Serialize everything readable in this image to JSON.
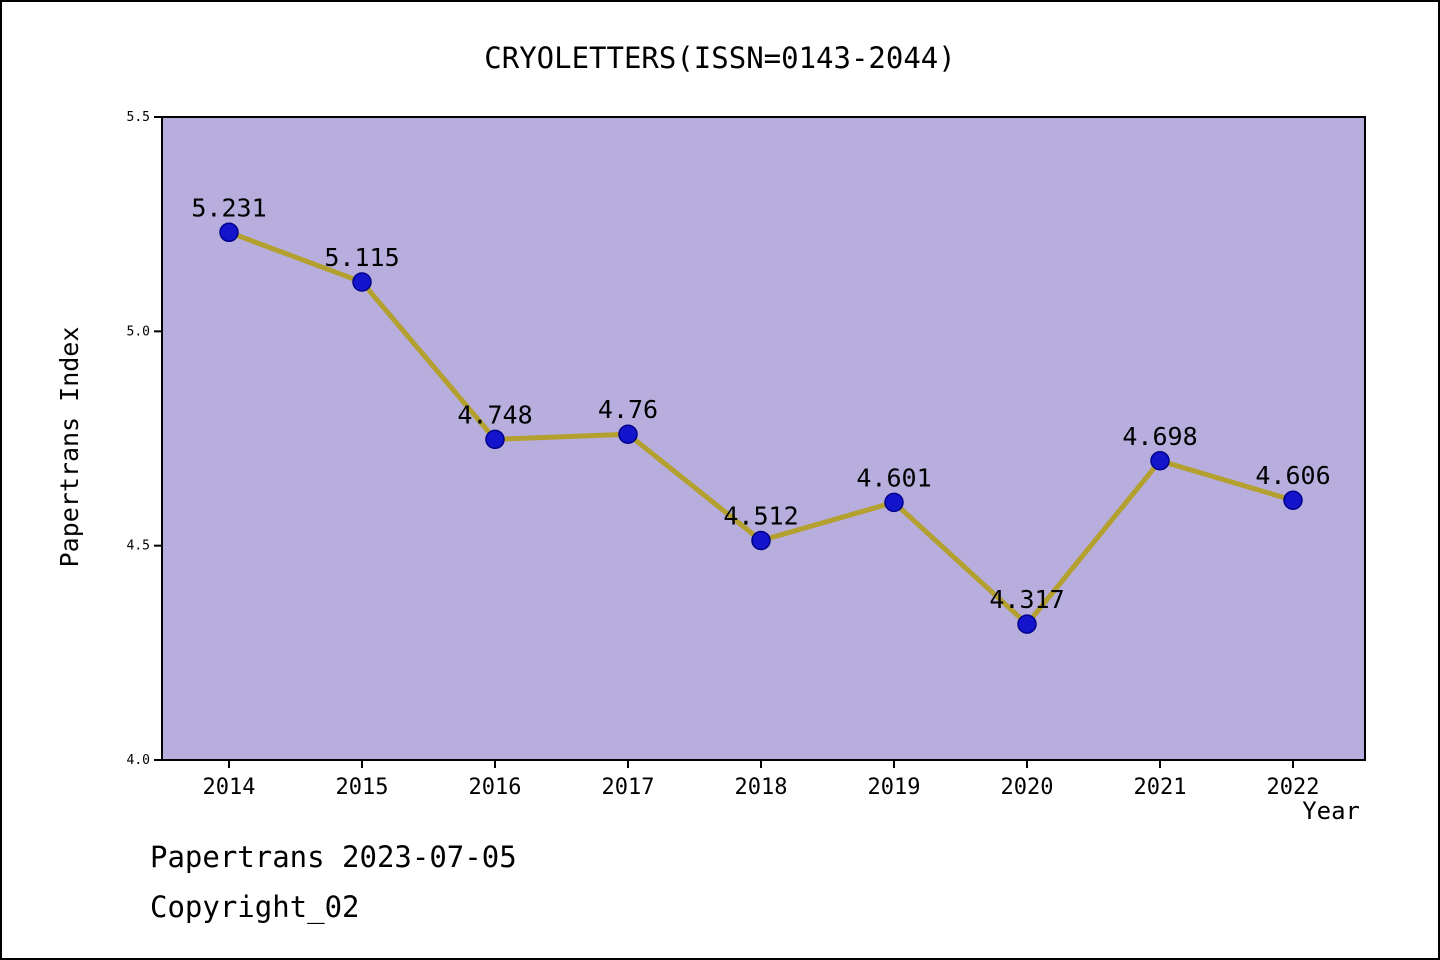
{
  "title": "CRYOLETTERS(ISSN=0143-2044)",
  "footer": {
    "line1": "Papertrans 2023-07-05",
    "line2": "Copyright_02"
  },
  "chart_data": {
    "type": "line",
    "title": "CRYOLETTERS(ISSN=0143-2044)",
    "x": [
      2014,
      2015,
      2016,
      2017,
      2018,
      2019,
      2020,
      2021,
      2022
    ],
    "values": [
      5.231,
      5.115,
      4.748,
      4.76,
      4.512,
      4.601,
      4.317,
      4.698,
      4.606
    ],
    "point_labels": [
      "5.231",
      "5.115",
      "4.748",
      "4.76",
      "4.512",
      "4.601",
      "4.317",
      "4.698",
      "4.606"
    ],
    "xlabel": "Year",
    "ylabel": "Papertrans Index",
    "ylim": [
      4.0,
      5.5
    ],
    "yticks": [
      4.0,
      4.5,
      5.0,
      5.5
    ],
    "ytick_labels": [
      "4.0",
      "4.5",
      "5.0",
      "5.5"
    ],
    "grid": false,
    "legend": "none",
    "colors": {
      "line": "#b3a02f",
      "marker_fill": "#1414cc",
      "marker_edge": "#00008b",
      "plot_bg": "#b7aedd",
      "axis": "#000000"
    }
  }
}
